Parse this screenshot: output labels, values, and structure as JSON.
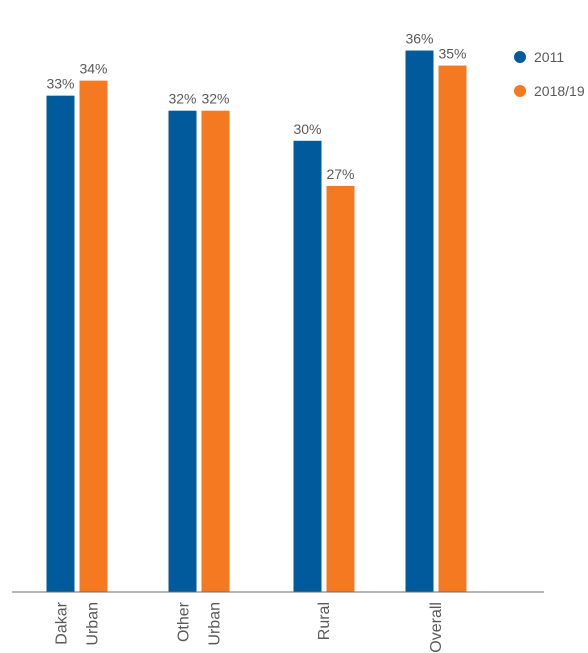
{
  "chart_data": {
    "type": "bar",
    "title": "",
    "xlabel": "",
    "ylabel": "",
    "ylim": [
      0,
      37
    ],
    "grid": false,
    "legend_position": "top-right",
    "categories": [
      [
        "Dakar",
        "Urban"
      ],
      [
        "Other",
        "Urban"
      ],
      [
        "Rural"
      ],
      [
        "Overall"
      ]
    ],
    "series": [
      {
        "name": "2011",
        "color": "#005a9c",
        "values": [
          33,
          32,
          30,
          36
        ],
        "labels": [
          "33%",
          "32%",
          "30%",
          "36%"
        ]
      },
      {
        "name": "2018/19",
        "color": "#f47920",
        "values": [
          34,
          32,
          27,
          35
        ],
        "labels": [
          "34%",
          "32%",
          "27%",
          "35%"
        ]
      }
    ]
  }
}
